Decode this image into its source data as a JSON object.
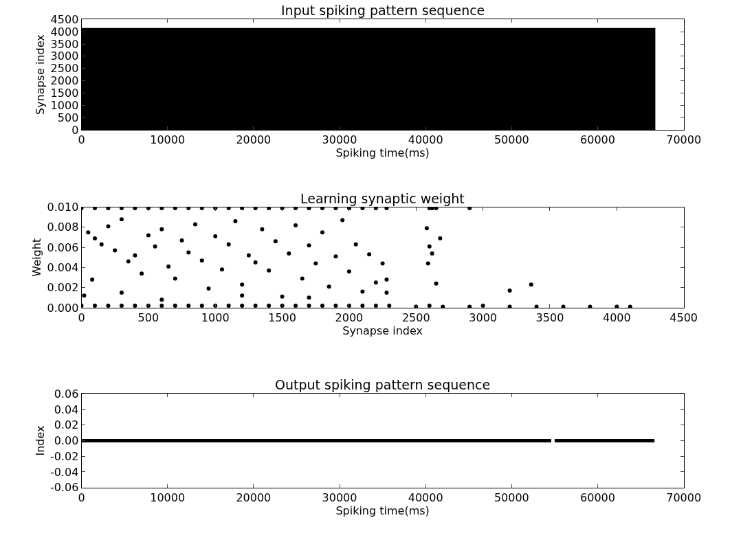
{
  "chart_data": [
    {
      "type": "area",
      "title": "Input spiking pattern sequence",
      "xlabel": "Spiking time(ms)",
      "ylabel": "Synapse index",
      "grid": false,
      "legend": false,
      "series": [
        {
          "color": "#000000",
          "x": [
            0,
            66700
          ],
          "values": [
            4150,
            4150
          ]
        }
      ],
      "xlim": [
        0,
        70000
      ],
      "ylim": [
        0,
        4500
      ],
      "xticks": [
        0,
        10000,
        20000,
        30000,
        40000,
        50000,
        60000,
        70000
      ],
      "yticks": [
        0,
        500,
        1000,
        1500,
        2000,
        2500,
        3000,
        3500,
        4000,
        4500
      ]
    },
    {
      "type": "scatter",
      "title": "Learning synaptic weight",
      "xlabel": "Synapse index",
      "ylabel": "Weight",
      "grid": false,
      "legend": false,
      "marker": "circle",
      "series": [
        {
          "color": "#000000",
          "x": [
            0,
            100,
            200,
            300,
            400,
            500,
            600,
            700,
            800,
            900,
            1000,
            1100,
            1200,
            1300,
            1400,
            1500,
            1600,
            1700,
            1800,
            1900,
            2000,
            2100,
            2200,
            2280,
            2600,
            2620,
            2650,
            2900,
            0,
            100,
            200,
            300,
            400,
            500,
            600,
            700,
            800,
            900,
            1000,
            1100,
            1200,
            1300,
            1400,
            1500,
            1600,
            1700,
            1800,
            1900,
            2000,
            2100,
            2200,
            2300,
            2500,
            2600,
            2700,
            2900,
            3000,
            3200,
            3400,
            3600,
            3800,
            4000,
            4100,
            50,
            100,
            150,
            200,
            250,
            300,
            350,
            400,
            450,
            500,
            550,
            600,
            650,
            700,
            750,
            800,
            850,
            900,
            950,
            1000,
            1050,
            1100,
            1150,
            1200,
            1250,
            1300,
            1350,
            1400,
            1450,
            1500,
            1550,
            1600,
            1650,
            1700,
            1750,
            1800,
            1850,
            1900,
            1950,
            2000,
            2050,
            2100,
            2150,
            2200,
            2250,
            2280,
            2280,
            2580,
            2590,
            2600,
            2620,
            2650,
            2680,
            3200,
            3360,
            20,
            80,
            300,
            600,
            1200,
            1700
          ],
          "values": [
            0.0099,
            0.0099,
            0.0099,
            0.0099,
            0.0099,
            0.0099,
            0.0099,
            0.0099,
            0.0099,
            0.0099,
            0.0099,
            0.0099,
            0.0099,
            0.0099,
            0.0099,
            0.0099,
            0.0099,
            0.0099,
            0.0099,
            0.0099,
            0.0099,
            0.0099,
            0.0099,
            0.0099,
            0.0099,
            0.0099,
            0.0099,
            0.0099,
            0.0002,
            0.0002,
            0.0002,
            0.0002,
            0.0002,
            0.0002,
            0.0002,
            0.0002,
            0.0002,
            0.0002,
            0.0002,
            0.0002,
            0.0002,
            0.0002,
            0.0002,
            0.0002,
            0.0002,
            0.0002,
            0.0002,
            0.0002,
            0.0002,
            0.0002,
            0.0002,
            0.0002,
            0.0001,
            0.0002,
            0.0001,
            0.0001,
            0.0002,
            0.0001,
            0.0001,
            0.0001,
            0.0001,
            0.0001,
            0.0001,
            0.0075,
            0.0069,
            0.0063,
            0.0081,
            0.0057,
            0.0088,
            0.0046,
            0.0052,
            0.0034,
            0.0072,
            0.0061,
            0.0078,
            0.0041,
            0.0029,
            0.0067,
            0.0055,
            0.0083,
            0.0047,
            0.0019,
            0.0071,
            0.0038,
            0.0063,
            0.0086,
            0.0023,
            0.0052,
            0.0045,
            0.0078,
            0.0037,
            0.0066,
            0.0011,
            0.0054,
            0.0082,
            0.0029,
            0.0062,
            0.0044,
            0.0075,
            0.0021,
            0.0051,
            0.0087,
            0.0036,
            0.0063,
            0.0016,
            0.0053,
            0.0025,
            0.0044,
            0.0028,
            0.0015,
            0.0079,
            0.0044,
            0.0061,
            0.0054,
            0.0024,
            0.0069,
            0.0017,
            0.0023,
            0.0012,
            0.0028,
            0.0015,
            0.0008,
            0.0012,
            0.001
          ]
        }
      ],
      "xlim": [
        0,
        4500
      ],
      "ylim": [
        0,
        0.01
      ],
      "xticks": [
        0,
        500,
        1000,
        1500,
        2000,
        2500,
        3000,
        3500,
        4000,
        4500
      ],
      "yticks": [
        {
          "value": 0,
          "label": "0.000"
        },
        {
          "value": 0.002,
          "label": "0.002"
        },
        {
          "value": 0.004,
          "label": "0.004"
        },
        {
          "value": 0.006,
          "label": "0.006"
        },
        {
          "value": 0.008,
          "label": "0.008"
        },
        {
          "value": 0.01,
          "label": "0.010"
        }
      ]
    },
    {
      "type": "line",
      "title": "Output spiking pattern sequence",
      "xlabel": "Spiking time(ms)",
      "ylabel": "Index",
      "grid": false,
      "legend": false,
      "series": [
        {
          "color": "#000000",
          "x": [
            0,
            54600,
            54610,
            55000,
            66600
          ],
          "values": [
            0,
            0,
            null,
            0,
            0
          ]
        }
      ],
      "xlim": [
        0,
        70000
      ],
      "ylim": [
        -0.06,
        0.06
      ],
      "xticks": [
        0,
        10000,
        20000,
        30000,
        40000,
        50000,
        60000,
        70000
      ],
      "yticks": [
        {
          "value": -0.06,
          "label": "-0.06"
        },
        {
          "value": -0.04,
          "label": "-0.04"
        },
        {
          "value": -0.02,
          "label": "-0.02"
        },
        {
          "value": 0,
          "label": "0.00"
        },
        {
          "value": 0.02,
          "label": "0.02"
        },
        {
          "value": 0.04,
          "label": "0.04"
        },
        {
          "value": 0.06,
          "label": "0.06"
        }
      ]
    }
  ]
}
